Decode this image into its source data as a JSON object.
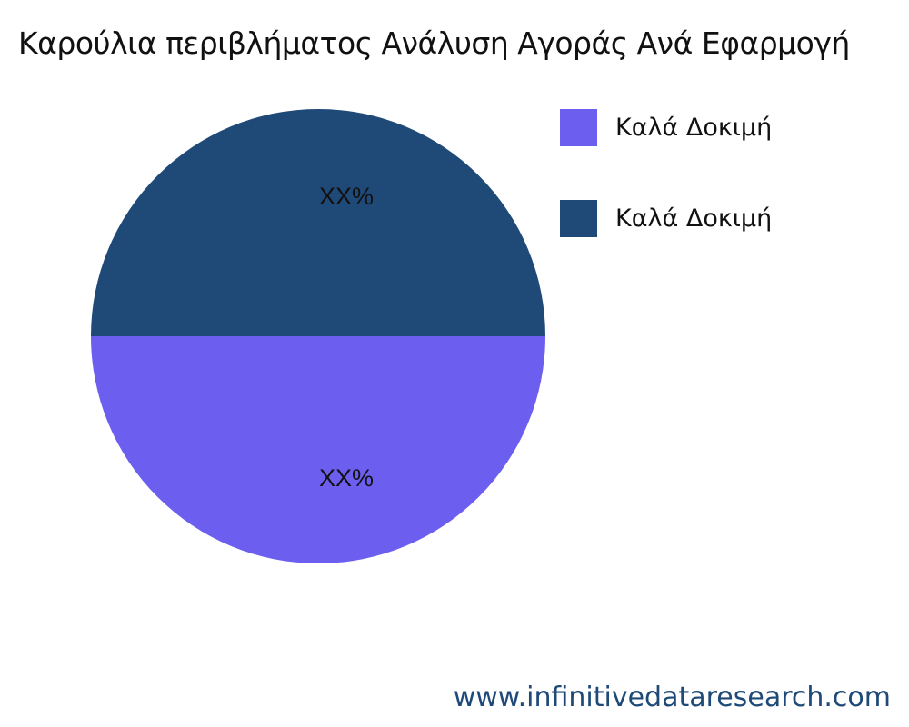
{
  "chart_data": {
    "type": "pie",
    "title": "Καρούλια περιβλήματος Ανάλυση Αγοράς Ανά Εφαρμογή",
    "slices": [
      {
        "label": "Καλά Δοκιμή",
        "value": 50,
        "data_label": "XX%",
        "color": "#6c5ff0"
      },
      {
        "label": "Καλά Δοκιμή",
        "value": 50,
        "data_label": "XX%",
        "color": "#1f4a78"
      }
    ],
    "legend_position": "right"
  },
  "footer": {
    "text": "www.infinitivedataresearch.com"
  }
}
